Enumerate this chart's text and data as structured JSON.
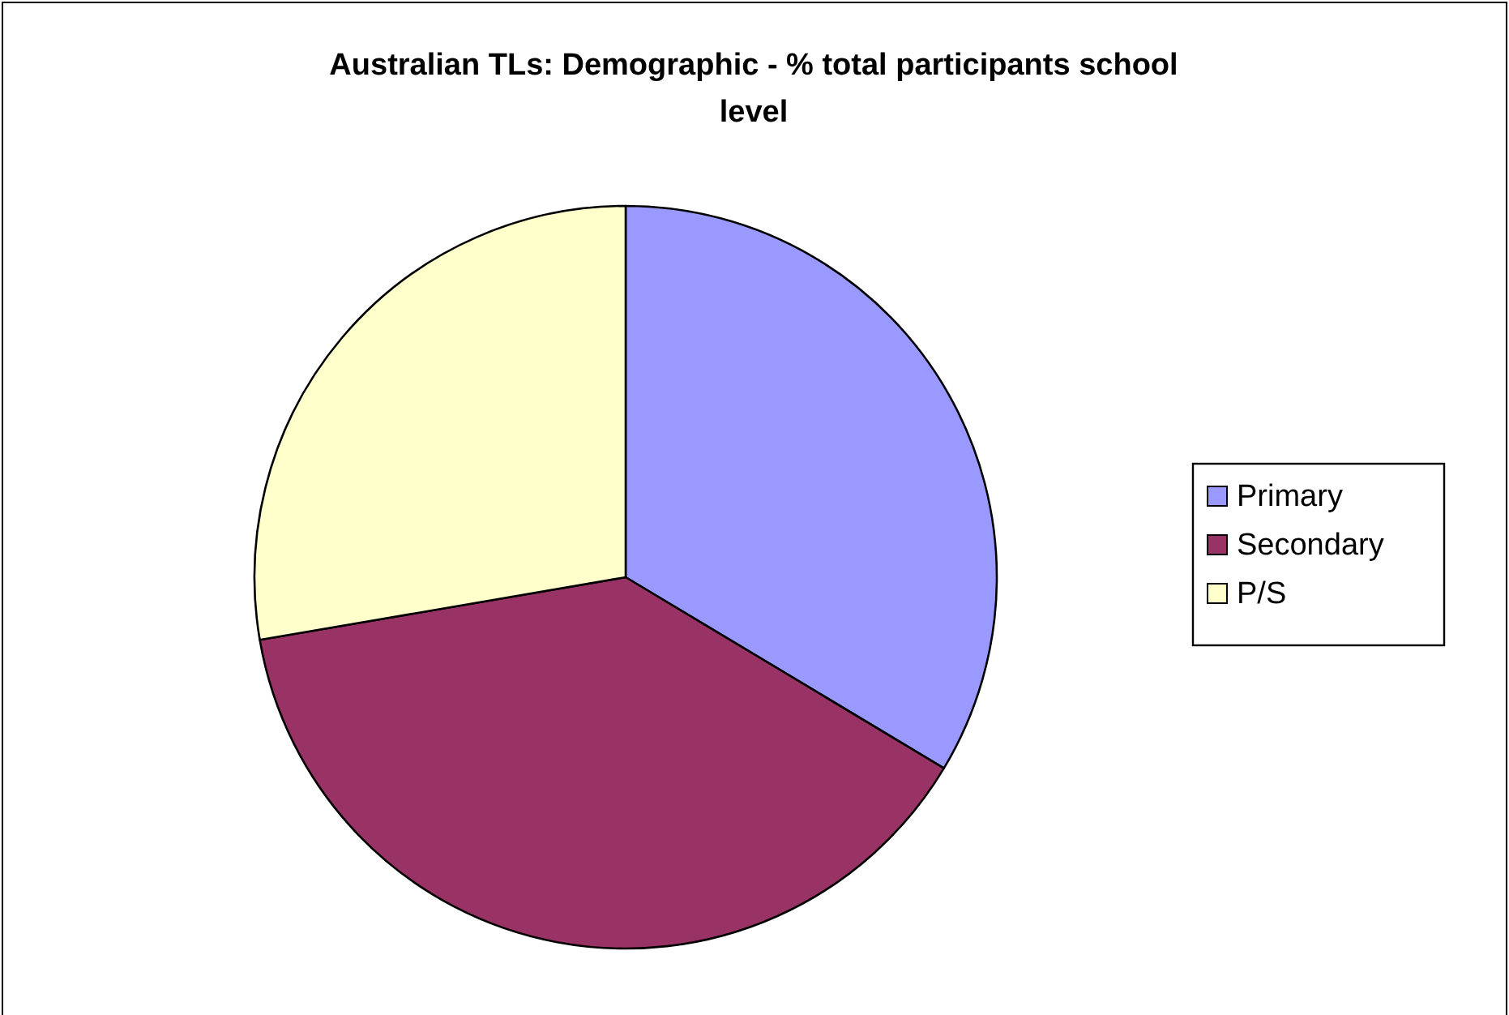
{
  "chart_data": {
    "type": "pie",
    "title": "Australian TLs: Demographic - % total participants school level",
    "categories": [
      "Primary",
      "Secondary",
      "P/S"
    ],
    "values": [
      33.6,
      38.7,
      27.7
    ],
    "colors": [
      "#9999ff",
      "#993366",
      "#ffffcc"
    ],
    "legend": "right"
  }
}
